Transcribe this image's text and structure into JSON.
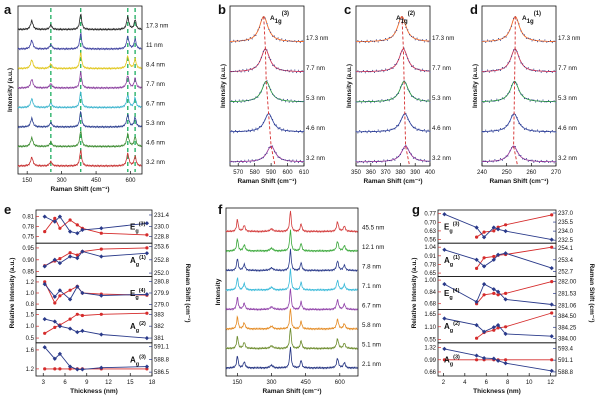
{
  "chart_data": [
    {
      "panel": "a",
      "type": "line",
      "xlabel": "Raman Shift (cm⁻¹)",
      "ylabel": "Intensity (a.u.)",
      "x_ticks": [
        "150",
        "300",
        "450",
        "600"
      ],
      "thickness_labels": [
        "17.3 nm",
        "11 nm",
        "8.4 nm",
        "7.7 nm",
        "6.7 nm",
        "5.3 nm",
        "4.6 nm",
        "3.2 nm"
      ],
      "series_colors": [
        "#222222",
        "#3c3f9e",
        "#e0c61a",
        "#8a3e9e",
        "#39b3cd",
        "#2a3d8f",
        "#3a8a2e",
        "#c72f2f"
      ],
      "peaks_cm-1": [
        170,
        253,
        383,
        588,
        620
      ],
      "marker_lines_cm-1": [
        253,
        383,
        588,
        620
      ]
    },
    {
      "panel": "b",
      "type": "line",
      "annotation": "A1g(3)",
      "xlabel": "Raman Shift (cm⁻¹)",
      "ylabel": "Intensity (a.u.)",
      "x_ticks": [
        "570",
        "580",
        "590",
        "600",
        "610"
      ],
      "xlim": [
        565,
        610
      ],
      "thickness_labels": [
        "17.3 nm",
        "7.7 nm",
        "5.3 nm",
        "4.6 nm",
        "3.2 nm"
      ],
      "peak_positions_cm-1": [
        585.5,
        586.5,
        587,
        588.5,
        590
      ]
    },
    {
      "panel": "c",
      "type": "line",
      "annotation": "A1g(2)",
      "xlabel": "Raman Shift (cm⁻¹)",
      "ylabel": "Intensity (a.u.)",
      "x_ticks": [
        "350",
        "360",
        "370",
        "380",
        "390",
        "400"
      ],
      "xlim": [
        350,
        400
      ],
      "thickness_labels": [
        "17.3 nm",
        "7.7 nm",
        "5.3 nm",
        "4.6 nm",
        "3.2 nm"
      ],
      "peak_positions_cm-1": [
        381,
        382,
        382.5,
        383,
        383.5
      ]
    },
    {
      "panel": "d",
      "type": "line",
      "annotation": "A1g(1)",
      "xlabel": "Raman Shift (cm⁻¹)",
      "ylabel": "Intensity (a.u.)",
      "x_ticks": [
        "240",
        "250",
        "260",
        "270"
      ],
      "xlim": [
        240,
        270
      ],
      "thickness_labels": [
        "17.3 nm",
        "7.7 nm",
        "5.3 nm",
        "4.6 nm",
        "3.2 nm"
      ],
      "peak_positions_cm-1": [
        253.5,
        253.4,
        253.2,
        253.0,
        252.8
      ]
    },
    {
      "panel": "e",
      "type": "line",
      "xlabel": "Thickness (nm)",
      "ylabel_left": "Relative Intensity (a.u.)",
      "ylabel_right": "Raman Shift (cm⁻¹)",
      "x_ticks": [
        "3",
        "6",
        "9",
        "12",
        "15",
        "18"
      ],
      "xlim": [
        2,
        18
      ],
      "x": [
        3.2,
        4.6,
        5.3,
        6.7,
        7.7,
        8.4,
        11,
        17.3
      ],
      "subplots": [
        {
          "label": "E",
          "sub": "g",
          "sup": "(3)",
          "left_ticks": [
            "0.81",
            "0.78",
            "0.75"
          ],
          "left_lim": [
            0.73,
            0.83
          ],
          "right_ticks": [
            "231.4",
            "230.0",
            "228.8"
          ],
          "right_lim": [
            228.0,
            232.0
          ],
          "intensity": [
            0.765,
            0.805,
            0.775,
            0.8,
            0.785,
            0.775,
            0.76,
            0.755
          ],
          "shift": [
            231.2,
            230.6,
            231.2,
            229.4,
            229.2,
            229.6,
            229.8,
            230.4
          ]
        },
        {
          "label": "A",
          "sub": "g",
          "sup": "(1)",
          "left_ticks": [
            "0.95",
            "0.90",
            "0.85"
          ],
          "left_lim": [
            0.83,
            0.97
          ],
          "right_ticks": [
            "253.6",
            "252.8",
            "252.0"
          ],
          "right_lim": [
            251.8,
            253.8
          ],
          "intensity": [
            0.875,
            0.895,
            0.905,
            0.93,
            0.92,
            0.935,
            0.945,
            0.95
          ],
          "shift": [
            252.4,
            252.8,
            252.6,
            253.0,
            252.9,
            253.3,
            253.0,
            253.2
          ]
        },
        {
          "label": "E",
          "sub": "g",
          "sup": "(4)",
          "left_ticks": [
            "1.2",
            "1.0",
            "0.8"
          ],
          "left_lim": [
            0.7,
            1.3
          ],
          "right_ticks": [
            "280.8",
            "279.9",
            "279.0"
          ],
          "right_lim": [
            278.6,
            281.2
          ],
          "intensity": [
            1.2,
            0.82,
            0.95,
            1.05,
            1.12,
            1.0,
            0.98,
            0.96
          ],
          "shift": [
            280.6,
            279.6,
            280.1,
            279.4,
            280.4,
            279.9,
            279.7,
            279.8
          ]
        },
        {
          "label": "A",
          "sub": "g",
          "sup": "(2)",
          "left_ticks": [
            "1.5",
            "1.0",
            "0.5"
          ],
          "left_lim": [
            0.3,
            1.7
          ],
          "right_ticks": [
            "383",
            "382",
            "381"
          ],
          "right_lim": [
            380.6,
            383.4
          ],
          "intensity": [
            0.7,
            0.95,
            1.05,
            1.3,
            1.5,
            1.45,
            1.5,
            1.55
          ],
          "shift": [
            382.6,
            382.4,
            382.0,
            381.8,
            381.5,
            381.6,
            381.3,
            381.0
          ]
        },
        {
          "label": "A",
          "sub": "g",
          "sup": "(3)",
          "left_ticks": [
            "1.6",
            "1.2"
          ],
          "left_lim": [
            1.05,
            1.75
          ],
          "right_ticks": [
            "591.1",
            "588.8",
            "586.5"
          ],
          "right_lim": [
            585.8,
            591.8
          ],
          "intensity": [
            1.2,
            1.2,
            1.2,
            1.2,
            1.2,
            1.2,
            1.2,
            1.2
          ],
          "shift": [
            591.0,
            588.9,
            589.8,
            587.5,
            587.0,
            587.0,
            587.3,
            587.5
          ]
        }
      ]
    },
    {
      "panel": "f",
      "type": "line",
      "xlabel": "Raman Shift (cm⁻¹)",
      "ylabel": "Intensity",
      "x_ticks": [
        "150",
        "300",
        "450",
        "600"
      ],
      "xlim": [
        100,
        680
      ],
      "thickness_labels": [
        "45.5 nm",
        "12.1 nm",
        "7.8 nm",
        "7.1 nm",
        "6.7 nm",
        "5.8 nm",
        "5.1 nm",
        "2.1 nm"
      ],
      "series_colors": [
        "#d33b3b",
        "#3aa83a",
        "#2a3a8a",
        "#35b8d8",
        "#8f3fa8",
        "#e48a22",
        "#6b8a2a",
        "#1f2f7f"
      ]
    },
    {
      "panel": "g",
      "type": "line",
      "xlabel": "Thickness (nm)",
      "ylabel_left": "Relative Intensity (a.u.)",
      "ylabel_right": "Raman Shift (cm⁻¹)",
      "x_ticks": [
        "2",
        "4",
        "6",
        "8",
        "10",
        "12"
      ],
      "xlim": [
        1.5,
        12.5
      ],
      "x": [
        2.1,
        5.1,
        5.8,
        6.7,
        7.1,
        7.8,
        12.1
      ],
      "subplots": [
        {
          "label": "E",
          "sub": "g",
          "sup": "(3)",
          "left_ticks": [
            "0.77",
            "0.70",
            "0.63",
            "0.56"
          ],
          "left_lim": [
            0.53,
            0.8
          ],
          "right_ticks": [
            "237.0",
            "235.5",
            "234.0",
            "232.5"
          ],
          "right_lim": [
            232.0,
            237.5
          ],
          "intensity": [
            null,
            0.58,
            0.62,
            0.63,
            0.66,
            0.68,
            0.76
          ],
          "shift": [
            236.8,
            234.6,
            233.0,
            234.6,
            234.3,
            234.0,
            232.6
          ]
        },
        {
          "label": "A",
          "sub": "g",
          "sup": "(1)",
          "left_ticks": [
            "1.04",
            "0.91",
            "0.78",
            "0.65"
          ],
          "left_lim": [
            0.6,
            1.1
          ],
          "right_ticks": [
            "254.1",
            "253.4",
            "252.7"
          ],
          "right_lim": [
            252.4,
            254.4
          ],
          "intensity": [
            null,
            0.72,
            0.88,
            0.9,
            0.92,
            0.93,
            1.04
          ],
          "shift": [
            254.0,
            253.4,
            253.0,
            253.4,
            253.7,
            253.8,
            252.9
          ]
        },
        {
          "label": "E",
          "sub": "g",
          "sup": "(4)",
          "left_ticks": [
            "1.00",
            "0.84",
            "0.68"
          ],
          "left_lim": [
            0.6,
            1.05
          ],
          "right_ticks": [
            "282.00",
            "281.53",
            "281.06"
          ],
          "right_lim": [
            280.9,
            282.2
          ],
          "intensity": [
            null,
            0.68,
            0.8,
            0.82,
            0.8,
            0.82,
            0.98
          ],
          "shift": [
            281.9,
            281.2,
            281.9,
            281.7,
            281.6,
            281.3,
            281.1
          ]
        },
        {
          "label": "A",
          "sub": "g",
          "sup": "(2)",
          "left_ticks": [
            "1.65",
            "1.10",
            "0.55"
          ],
          "left_lim": [
            0.4,
            1.85
          ],
          "right_ticks": [
            "384.50",
            "384.25",
            "384.00"
          ],
          "right_lim": [
            383.9,
            384.65
          ],
          "intensity": [
            null,
            0.6,
            0.85,
            0.95,
            1.05,
            1.1,
            1.7
          ],
          "shift": [
            384.45,
            384.3,
            384.15,
            384.25,
            384.3,
            384.1,
            384.05
          ]
        },
        {
          "label": "A",
          "sub": "g",
          "sup": "(3)",
          "left_ticks": [
            "1.32",
            "0.99",
            "0.66"
          ],
          "left_lim": [
            0.55,
            1.45
          ],
          "right_ticks": [
            "593.4",
            "591.1",
            "588.8"
          ],
          "right_lim": [
            588.0,
            594.5
          ],
          "intensity": [
            0.99,
            0.99,
            0.99,
            0.99,
            0.99,
            0.99,
            0.99
          ],
          "shift": [
            593.3,
            592.0,
            591.5,
            591.4,
            591.0,
            590.5,
            589.0
          ]
        }
      ]
    }
  ]
}
